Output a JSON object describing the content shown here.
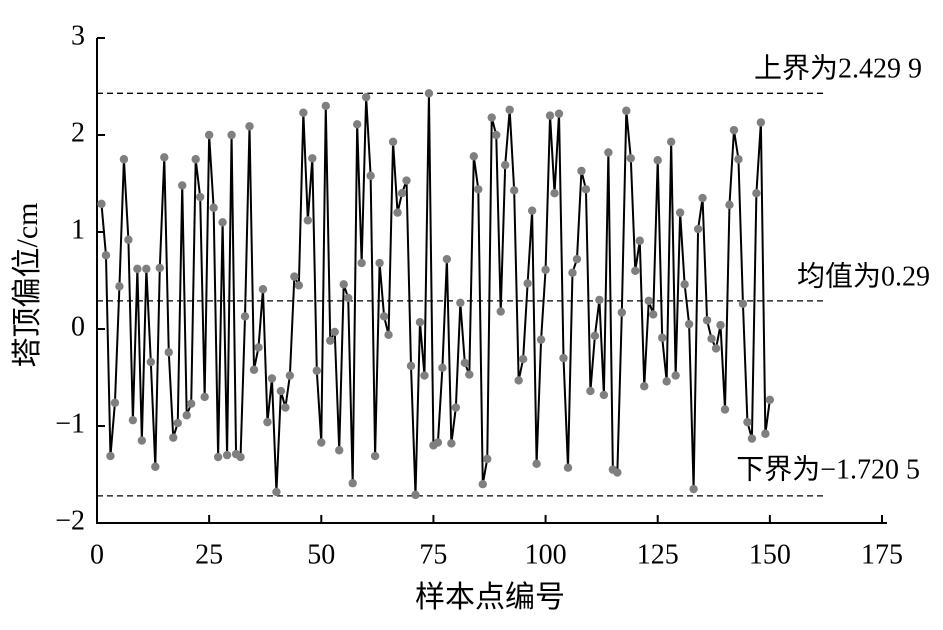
{
  "chart_data": {
    "type": "line",
    "xlabel": "样本点编号",
    "ylabel": "塔顶偏位/cm",
    "x": [
      1,
      2,
      3,
      4,
      5,
      6,
      7,
      8,
      9,
      10,
      11,
      12,
      13,
      14,
      15,
      16,
      17,
      18,
      19,
      20,
      21,
      22,
      23,
      24,
      25,
      26,
      27,
      28,
      29,
      30,
      31,
      32,
      33,
      34,
      35,
      36,
      37,
      38,
      39,
      40,
      41,
      42,
      43,
      44,
      45,
      46,
      47,
      48,
      49,
      50,
      51,
      52,
      53,
      54,
      55,
      56,
      57,
      58,
      59,
      60,
      61,
      62,
      63,
      64,
      65,
      66,
      67,
      68,
      69,
      70,
      71,
      72,
      73,
      74,
      75,
      76,
      77,
      78,
      79,
      80,
      81,
      82,
      83,
      84,
      85,
      86,
      87,
      88,
      89,
      90,
      91,
      92,
      93,
      94,
      95,
      96,
      97,
      98,
      99,
      100,
      101,
      102,
      103,
      104,
      105,
      106,
      107,
      108,
      109,
      110,
      111,
      112,
      113,
      114,
      115,
      116,
      117,
      118,
      119,
      120,
      121,
      122,
      123,
      124,
      125,
      126,
      127,
      128,
      129,
      130,
      131,
      132,
      133,
      134,
      135,
      136,
      137,
      138,
      139,
      140,
      141,
      142,
      143,
      144,
      145,
      146,
      147,
      148,
      149,
      150
    ],
    "values": [
      1.29,
      0.76,
      -1.31,
      -0.76,
      0.44,
      1.75,
      0.92,
      -0.94,
      0.62,
      -1.15,
      0.62,
      -0.34,
      -1.42,
      0.63,
      1.77,
      -0.24,
      -1.12,
      -0.97,
      1.48,
      -0.89,
      -0.77,
      1.75,
      1.36,
      -0.7,
      2.0,
      1.25,
      -1.32,
      1.1,
      -1.3,
      2.0,
      -1.29,
      -1.32,
      0.13,
      2.09,
      -0.42,
      -0.19,
      0.41,
      -0.96,
      -0.51,
      -1.68,
      -0.64,
      -0.81,
      -0.48,
      0.54,
      0.45,
      2.23,
      1.12,
      1.76,
      -0.43,
      -1.17,
      2.3,
      -0.12,
      -0.03,
      -1.25,
      0.46,
      0.32,
      -1.59,
      2.11,
      0.68,
      2.39,
      1.58,
      -1.31,
      0.68,
      0.13,
      -0.06,
      1.93,
      1.2,
      1.4,
      1.53,
      -0.38,
      -1.71,
      0.07,
      -0.48,
      2.43,
      -1.2,
      -1.17,
      -0.4,
      0.72,
      -1.18,
      -0.81,
      0.27,
      -0.35,
      -0.47,
      1.78,
      1.44,
      -1.6,
      -1.34,
      2.18,
      2.0,
      0.18,
      1.69,
      2.26,
      1.43,
      -0.53,
      -0.31,
      0.47,
      1.22,
      -1.39,
      -0.11,
      0.61,
      2.2,
      1.4,
      2.22,
      -0.3,
      -1.43,
      0.58,
      0.72,
      1.63,
      1.44,
      -0.64,
      -0.07,
      0.3,
      -0.68,
      1.82,
      -1.45,
      -1.48,
      0.17,
      2.25,
      1.76,
      0.6,
      0.91,
      -0.59,
      0.29,
      0.15,
      1.74,
      -0.09,
      -0.54,
      1.93,
      -0.48,
      1.2,
      0.46,
      0.05,
      -1.65,
      1.03,
      1.35,
      0.09,
      -0.1,
      -0.2,
      0.04,
      -0.83,
      1.28,
      2.05,
      1.75,
      0.26,
      -0.96,
      -1.13,
      1.4,
      2.13,
      -1.08,
      -0.73
    ],
    "color": "#000000",
    "marker_color": "#7f7f7f",
    "xlim": [
      0,
      175
    ],
    "xticks": [
      0,
      25,
      50,
      75,
      100,
      125,
      150,
      175
    ],
    "ylim": [
      -2,
      3
    ],
    "yticks": [
      {
        "value": -2,
        "label": "−2"
      },
      {
        "value": -1,
        "label": "−1"
      },
      0,
      1,
      2,
      3
    ],
    "reference_lines": [
      {
        "label": "上界为2.429 9",
        "value": 2.4299
      },
      {
        "label": "均值为0.29",
        "value": 0.29
      },
      {
        "label": "下界为−1.720 5",
        "value": -1.7205
      }
    ]
  }
}
